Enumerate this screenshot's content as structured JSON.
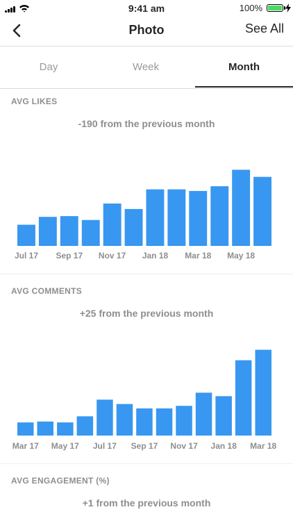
{
  "status_bar": {
    "time": "9:41 am",
    "battery_percent": "100%",
    "battery_level": 1.0,
    "battery_color": "#4cd964"
  },
  "nav": {
    "title": "Photo",
    "see_all": "See All"
  },
  "tabs": [
    {
      "label": "Day"
    },
    {
      "label": "Week"
    },
    {
      "label": "Month"
    }
  ],
  "active_tab": "Month",
  "accent_color": "#3897f0",
  "sections": [
    {
      "title": "AVG LIKES",
      "subtitle": "-190 from the previous month"
    },
    {
      "title": "AVG COMMENTS",
      "subtitle": "+25 from the previous month"
    },
    {
      "title": "AVG ENGAGEMENT (%)",
      "subtitle": "+1 from the previous month"
    }
  ],
  "chart_data": [
    {
      "type": "bar",
      "title": "AVG LIKES",
      "categories": [
        "Jul 17",
        "Aug 17",
        "Sep 17",
        "Oct 17",
        "Nov 17",
        "Dec 17",
        "Jan 18",
        "Feb 18",
        "Mar 18",
        "Apr 18",
        "May 18",
        "Jun 18"
      ],
      "tick_labels": [
        "Jul 17",
        "Sep 17",
        "Nov 17",
        "Jan 18",
        "Mar 18",
        "May 18"
      ],
      "values": [
        27,
        37,
        38,
        33,
        54,
        47,
        72,
        72,
        70,
        76,
        97,
        88
      ],
      "ylim": [
        0,
        100
      ],
      "grid": false
    },
    {
      "type": "bar",
      "title": "AVG COMMENTS",
      "categories": [
        "Mar 17",
        "Apr 17",
        "May 17",
        "Jun 17",
        "Jul 17",
        "Aug 17",
        "Sep 17",
        "Oct 17",
        "Nov 17",
        "Dec 17",
        "Jan 18",
        "Feb 18",
        "Mar 18"
      ],
      "tick_labels": [
        "Mar 17",
        "May 17",
        "Jul 17",
        "Sep 17",
        "Nov 17",
        "Jan 18",
        "Mar 18"
      ],
      "values": [
        15,
        16,
        15,
        22,
        41,
        36,
        31,
        31,
        34,
        49,
        45,
        86,
        98
      ],
      "ylim": [
        0,
        100
      ],
      "grid": false
    }
  ]
}
